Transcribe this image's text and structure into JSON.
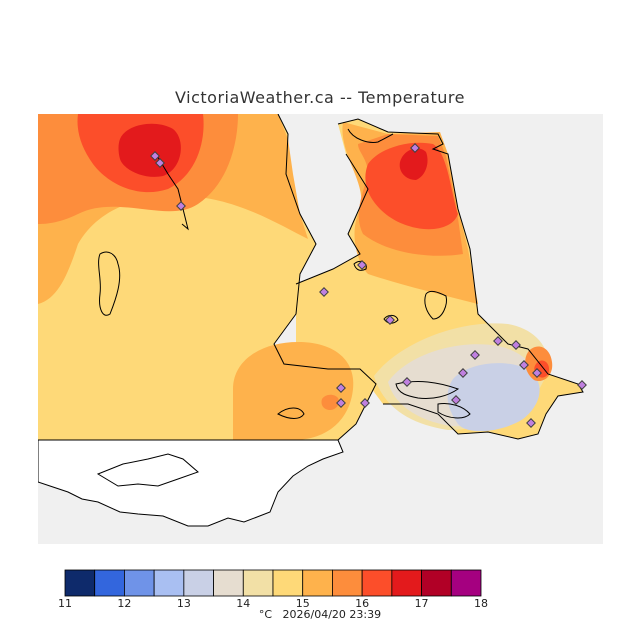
{
  "title": "VictoriaWeather.ca -- Temperature",
  "caption_unit": "°C",
  "caption_timestamp": "2026/04/20 23:39",
  "legend": {
    "ticks": [
      "11",
      "12",
      "13",
      "14",
      "15",
      "16",
      "17",
      "18"
    ],
    "colors": [
      "#0e2a6b",
      "#3366dd",
      "#6f93e8",
      "#a9bff2",
      "#c9d0e6",
      "#e6ddd0",
      "#f2e0a6",
      "#fed978",
      "#feb24c",
      "#fd8d3c",
      "#fc4e2a",
      "#e31a1c",
      "#b10026",
      "#a50080"
    ]
  },
  "colors": {
    "sea": "#f0f0f0",
    "land_outside": "#ffffff",
    "coastline": "#000000",
    "station_fill": "#c080e0",
    "station_stroke": "#404040"
  }
}
